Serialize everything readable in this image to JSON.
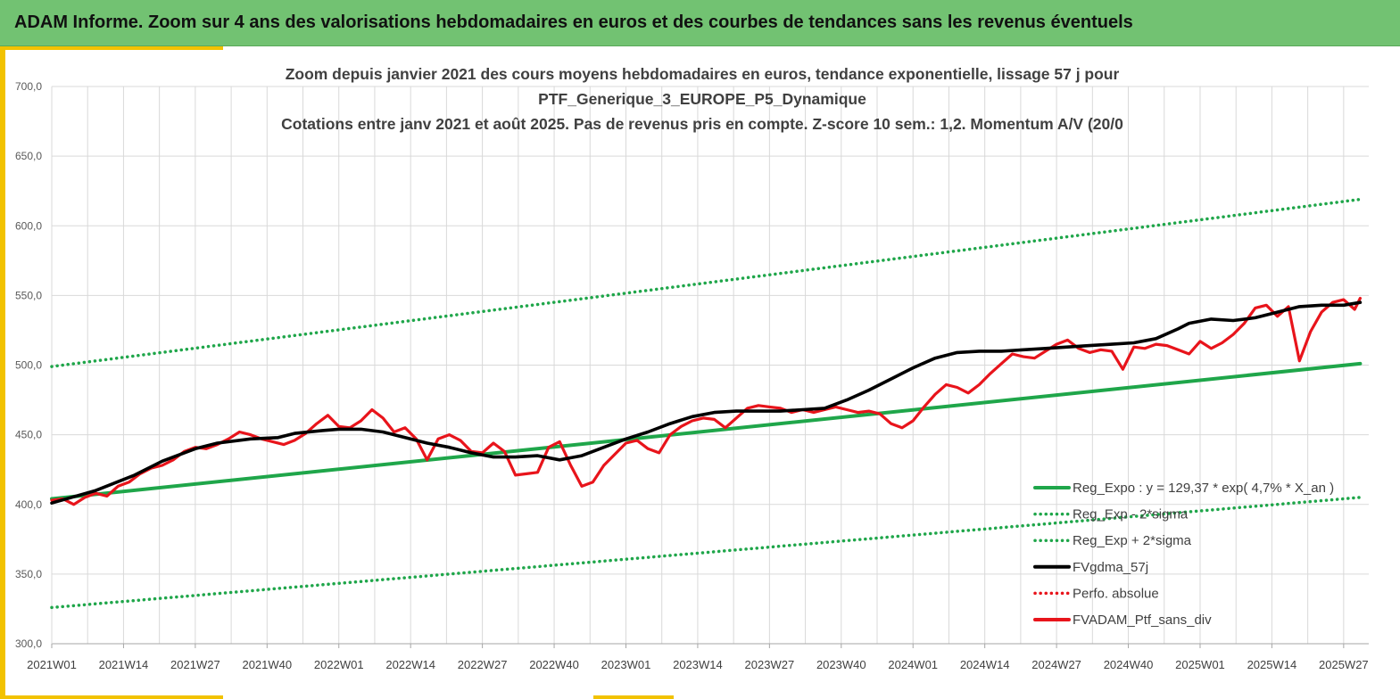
{
  "header": {
    "title": "ADAM Informe. Zoom sur 4 ans des valorisations hebdomadaires en euros et des courbes de tendances sans les revenus éventuels"
  },
  "colors": {
    "header_bg": "#72c272",
    "accent": "#f2c200",
    "trend": "#1fa64a",
    "smooth": "#000000",
    "price": "#e8141b",
    "grid": "#d9d9d9"
  },
  "chart_data": {
    "type": "line",
    "title_lines": [
      "Zoom depuis janvier 2021 des cours moyens hebdomadaires  en euros, tendance exponentielle, lissage 57 j pour",
      "PTF_Generique_3_EUROPE_P5_Dynamique",
      "Cotations entre janv 2021 et août 2025. Pas de revenus pris en compte. Z-score 10 sem.: 1,2. Momentum A/V (20/0"
    ],
    "ylim": [
      300,
      700
    ],
    "y_ticks": [
      "300,0",
      "350,0",
      "400,0",
      "450,0",
      "500,0",
      "550,0",
      "600,0",
      "650,0",
      "700,0"
    ],
    "x_ticks": [
      "2021W01",
      "2021W14",
      "2021W27",
      "2021W40",
      "2022W01",
      "2022W14",
      "2022W27",
      "2022W40",
      "2023W01",
      "2023W14",
      "2023W27",
      "2023W40",
      "2024W01",
      "2024W14",
      "2024W27",
      "2024W40",
      "2025W01",
      "2025W14",
      "2025W27"
    ],
    "grid": true,
    "legend_position": "bottom-right",
    "series": [
      {
        "name": "Reg_Expo : y = 129,37 * exp( 4,7% *  X_an )",
        "color": "#1fa64a",
        "style": "solid",
        "weeks": [
          0,
          237
        ],
        "values": [
          404,
          501
        ]
      },
      {
        "name": "Reg_Exp - 2*sigma",
        "color": "#1fa64a",
        "style": "dotted",
        "weeks": [
          0,
          237
        ],
        "values": [
          326,
          405
        ]
      },
      {
        "name": "Reg_Exp + 2*sigma",
        "color": "#1fa64a",
        "style": "dotted",
        "weeks": [
          0,
          237
        ],
        "values": [
          499,
          619
        ]
      },
      {
        "name": "FVgdma_57j",
        "color": "#000000",
        "style": "solid",
        "weeks": [
          0,
          8,
          15,
          20,
          26,
          30,
          36,
          41,
          44,
          49,
          52,
          56,
          60,
          64,
          68,
          72,
          76,
          80,
          84,
          88,
          92,
          96,
          100,
          104,
          108,
          112,
          116,
          120,
          124,
          128,
          132,
          136,
          140,
          144,
          148,
          152,
          156,
          160,
          164,
          168,
          172,
          176,
          180,
          184,
          188,
          192,
          196,
          200,
          204,
          206,
          210,
          214,
          218,
          222,
          226,
          230,
          234,
          237
        ],
        "values": [
          401,
          410,
          421,
          431,
          440,
          444,
          447,
          448,
          451,
          453,
          454,
          454,
          452,
          448,
          444,
          441,
          437,
          434,
          434,
          435,
          432,
          435,
          441,
          447,
          452,
          458,
          463,
          466,
          467,
          467,
          467,
          468,
          469,
          475,
          482,
          490,
          498,
          505,
          509,
          510,
          510,
          511,
          512,
          513,
          514,
          515,
          516,
          519,
          526,
          530,
          533,
          532,
          534,
          538,
          542,
          543,
          543,
          545
        ]
      },
      {
        "name": "Perfo. absolue",
        "color": "#e8141b",
        "style": "dotted",
        "weeks": [],
        "values": []
      },
      {
        "name": "FVADAM_Ptf_sans_div",
        "color": "#e8141b",
        "style": "solid",
        "weeks": [
          0,
          2,
          4,
          6,
          8,
          10,
          12,
          14,
          16,
          18,
          20,
          22,
          24,
          26,
          28,
          30,
          32,
          34,
          36,
          38,
          40,
          42,
          44,
          46,
          48,
          50,
          52,
          54,
          56,
          58,
          60,
          62,
          64,
          66,
          68,
          70,
          72,
          74,
          76,
          78,
          80,
          82,
          84,
          86,
          88,
          90,
          92,
          94,
          96,
          98,
          100,
          102,
          104,
          106,
          108,
          110,
          112,
          114,
          116,
          118,
          120,
          122,
          124,
          126,
          128,
          130,
          132,
          134,
          136,
          138,
          140,
          142,
          144,
          146,
          148,
          150,
          152,
          154,
          156,
          158,
          160,
          162,
          164,
          166,
          168,
          170,
          172,
          174,
          176,
          178,
          180,
          182,
          184,
          186,
          188,
          190,
          192,
          194,
          196,
          198,
          200,
          202,
          204,
          206,
          208,
          210,
          212,
          214,
          216,
          218,
          220,
          222,
          224,
          226,
          228,
          230,
          232,
          234,
          236,
          237
        ],
        "values": [
          403,
          404,
          400,
          405,
          408,
          406,
          413,
          416,
          422,
          426,
          428,
          432,
          438,
          441,
          440,
          443,
          447,
          452,
          450,
          447,
          445,
          443,
          446,
          451,
          458,
          464,
          456,
          455,
          460,
          468,
          462,
          452,
          455,
          447,
          432,
          447,
          450,
          446,
          438,
          437,
          444,
          438,
          421,
          422,
          423,
          441,
          445,
          428,
          413,
          416,
          428,
          436,
          444,
          446,
          440,
          437,
          450,
          456,
          460,
          462,
          461,
          455,
          462,
          469,
          471,
          470,
          469,
          466,
          468,
          466,
          468,
          470,
          468,
          466,
          467,
          465,
          458,
          455,
          460,
          470,
          479,
          486,
          484,
          480,
          486,
          494,
          501,
          508,
          506,
          505,
          510,
          515,
          518,
          512,
          509,
          511,
          510,
          497,
          513,
          512,
          515,
          514,
          511,
          508,
          517,
          512,
          516,
          522,
          530,
          541,
          543,
          535,
          542,
          503,
          524,
          538,
          545,
          547,
          540,
          548
        ]
      }
    ]
  }
}
